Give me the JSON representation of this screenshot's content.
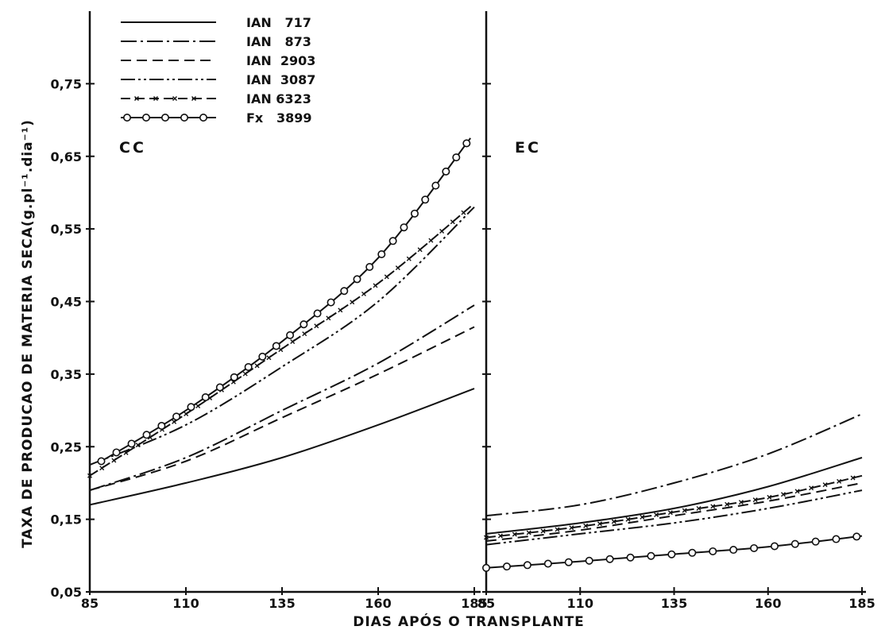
{
  "chart_data": [
    {
      "type": "line",
      "panel_label": "CC",
      "xlabel": "DIAS APÓS O TRANSPLANTE",
      "ylabel": "TAXA DE PRODUCAO DE MATERIA SECA(g.pl⁻¹.dia⁻¹)",
      "xlim": [
        85,
        185
      ],
      "ylim": [
        0.05,
        0.85
      ],
      "xticks": [
        "85",
        "110",
        "135",
        "160",
        "185"
      ],
      "yticks": [
        "0,05",
        "0,15",
        "0,25",
        "0,35",
        "0,45",
        "0,55",
        "0,65",
        "0,75"
      ],
      "x": [
        85,
        110,
        135,
        160,
        185
      ],
      "series": [
        {
          "name": "IAN 717",
          "style": "solid",
          "values": [
            0.17,
            0.2,
            0.235,
            0.28,
            0.33
          ]
        },
        {
          "name": "IAN 873",
          "style": "dashdot",
          "values": [
            0.19,
            0.235,
            0.3,
            0.365,
            0.445
          ]
        },
        {
          "name": "IAN 2903",
          "style": "dashed",
          "values": [
            0.19,
            0.23,
            0.29,
            0.35,
            0.415
          ]
        },
        {
          "name": "IAN 3087",
          "style": "dashdotdot",
          "values": [
            0.225,
            0.28,
            0.36,
            0.45,
            0.58
          ]
        },
        {
          "name": "IAN 6323",
          "style": "dash-x",
          "values": [
            0.21,
            0.295,
            0.385,
            0.475,
            0.585
          ]
        },
        {
          "name": "Fx 3899",
          "style": "circles",
          "x": [
            88,
            110,
            135,
            160,
            184
          ],
          "values": [
            0.23,
            0.3,
            0.395,
            0.51,
            0.675
          ]
        }
      ]
    },
    {
      "type": "line",
      "panel_label": "EC",
      "xlabel": "DIAS APÓS O TRANSPLANTE",
      "xlim": [
        85,
        185
      ],
      "ylim": [
        0.05,
        0.85
      ],
      "xticks": [
        "85",
        "110",
        "135",
        "160",
        "185"
      ],
      "x": [
        85,
        110,
        135,
        160,
        185
      ],
      "series": [
        {
          "name": "IAN 717",
          "style": "solid",
          "values": [
            0.13,
            0.145,
            0.165,
            0.195,
            0.235
          ]
        },
        {
          "name": "IAN 873",
          "style": "dashdot",
          "values": [
            0.155,
            0.17,
            0.2,
            0.24,
            0.295
          ]
        },
        {
          "name": "IAN 2903",
          "style": "dashed",
          "values": [
            0.12,
            0.135,
            0.155,
            0.175,
            0.2
          ]
        },
        {
          "name": "IAN 3087",
          "style": "dashdotdot",
          "values": [
            0.115,
            0.13,
            0.145,
            0.165,
            0.19
          ]
        },
        {
          "name": "IAN 6323",
          "style": "dash-x",
          "values": [
            0.125,
            0.14,
            0.16,
            0.18,
            0.21
          ]
        },
        {
          "name": "Fx 3899",
          "style": "circles",
          "values": [
            0.083,
            0.092,
            0.102,
            0.112,
            0.127
          ]
        }
      ]
    }
  ],
  "legend": [
    {
      "label": "IAN   717",
      "style": "solid"
    },
    {
      "label": "IAN   873",
      "style": "dashdot"
    },
    {
      "label": "IAN  2903",
      "style": "dashed"
    },
    {
      "label": "IAN  3087",
      "style": "dashdotdot"
    },
    {
      "label": "IAN 6323",
      "style": "dash-x"
    },
    {
      "label": "Fx   3899",
      "style": "circles"
    }
  ],
  "colors": {
    "ink": "#111111",
    "background": "#ffffff"
  }
}
